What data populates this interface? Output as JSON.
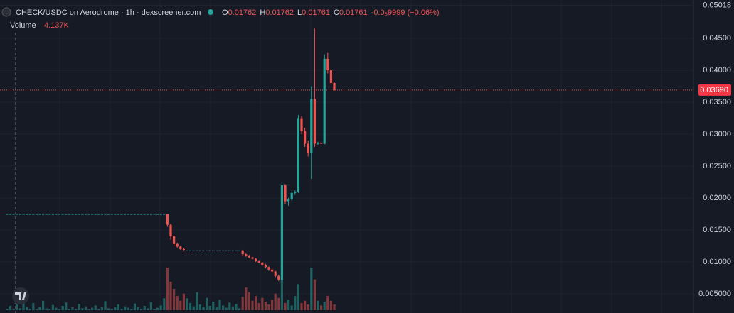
{
  "chart_data": {
    "type": "candlestick",
    "title": "CHECK/USDC on Aerodrome · 1h · dexscreener.com",
    "ohlc": {
      "o_label": "O",
      "o": 0.01762,
      "h_label": "H",
      "h": 0.01762,
      "l_label": "L",
      "l": 0.01761,
      "c_label": "C",
      "c": 0.01761,
      "change": "-0.0₅9999 (−0.06%)"
    },
    "volume_label": "Volume",
    "volume_value": "4.137K",
    "last_price": {
      "value": 0.0369,
      "label": "0.03690"
    },
    "ylim": [
      0.002,
      0.051
    ],
    "yticks": [
      {
        "value": 0.005,
        "label": "0.005000"
      },
      {
        "value": 0.01,
        "label": "0.01000"
      },
      {
        "value": 0.015,
        "label": "0.01500"
      },
      {
        "value": 0.02,
        "label": "0.02000"
      },
      {
        "value": 0.025,
        "label": "0.02500"
      },
      {
        "value": 0.03,
        "label": "0.03000"
      },
      {
        "value": 0.035,
        "label": "0.03500"
      },
      {
        "value": 0.04,
        "label": "0.04000"
      },
      {
        "value": 0.045,
        "label": "0.04500"
      },
      0.05018
    ],
    "grid": true,
    "up_color": "#26a69a",
    "down_color": "#ef5350",
    "open": [
      0.0175,
      0.0175,
      0.0175,
      0.0175,
      0.0175,
      0.0175,
      0.0175,
      0.0175,
      0.0175,
      0.0175,
      0.0175,
      0.0175,
      0.0175,
      0.0175,
      0.0175,
      0.0175,
      0.0175,
      0.0175,
      0.0175,
      0.0175,
      0.0175,
      0.0175,
      0.0175,
      0.0175,
      0.0175,
      0.0175,
      0.0175,
      0.0175,
      0.0175,
      0.0175,
      0.0175,
      0.0175,
      0.0175,
      0.0175,
      0.0175,
      0.0175,
      0.0175,
      0.0175,
      0.0175,
      0.0175,
      0.0175,
      0.0175,
      0.0175,
      0.0175,
      0.0175,
      0.0175,
      0.0175,
      0.0175,
      0.0175,
      0.0175,
      0.0158,
      0.014,
      0.0128,
      0.0124,
      0.012,
      0.0118,
      0.0118,
      0.0118,
      0.0118,
      0.0118,
      0.0118,
      0.0118,
      0.0118,
      0.0118,
      0.0118,
      0.0118,
      0.0118,
      0.0118,
      0.0118,
      0.0118,
      0.0118,
      0.0118,
      0.0118,
      0.0112,
      0.011,
      0.0107,
      0.0105,
      0.0101,
      0.0099,
      0.0095,
      0.0092,
      0.0088,
      0.0085,
      0.0078,
      0.0072,
      0.022,
      0.0195,
      0.0198,
      0.0208,
      0.021,
      0.0325,
      0.0305,
      0.0285,
      0.027,
      0.0355,
      0.0285,
      0.0286,
      0.0285,
      0.0418,
      0.04,
      0.038
    ],
    "high": [
      0.0175,
      0.0175,
      0.0175,
      0.0175,
      0.0175,
      0.0175,
      0.0175,
      0.0175,
      0.0175,
      0.0175,
      0.0175,
      0.0175,
      0.0175,
      0.0175,
      0.0175,
      0.0175,
      0.0175,
      0.0175,
      0.0175,
      0.0175,
      0.0175,
      0.0175,
      0.0175,
      0.0175,
      0.0175,
      0.0175,
      0.0175,
      0.0175,
      0.0175,
      0.0175,
      0.0175,
      0.0175,
      0.0175,
      0.0175,
      0.0175,
      0.0175,
      0.0175,
      0.0175,
      0.0175,
      0.0175,
      0.0175,
      0.0175,
      0.0175,
      0.0175,
      0.0175,
      0.0175,
      0.0175,
      0.0175,
      0.0175,
      0.0175,
      0.016,
      0.0142,
      0.013,
      0.0125,
      0.0122,
      0.0118,
      0.0118,
      0.0118,
      0.0118,
      0.0118,
      0.0118,
      0.0118,
      0.0118,
      0.0118,
      0.0118,
      0.0118,
      0.0118,
      0.0118,
      0.0118,
      0.0118,
      0.0118,
      0.0118,
      0.0119,
      0.0113,
      0.0111,
      0.0108,
      0.0106,
      0.0102,
      0.01,
      0.0097,
      0.0093,
      0.009,
      0.0086,
      0.008,
      0.0225,
      0.0222,
      0.02,
      0.021,
      0.0212,
      0.033,
      0.0328,
      0.031,
      0.029,
      0.0375,
      0.0465,
      0.0288,
      0.0288,
      0.0425,
      0.0428,
      0.0402,
      0.0381
    ],
    "low": [
      0.0175,
      0.0175,
      0.0175,
      0.0175,
      0.0175,
      0.0175,
      0.0175,
      0.0175,
      0.0175,
      0.0175,
      0.0175,
      0.0175,
      0.0175,
      0.0175,
      0.0175,
      0.0175,
      0.0175,
      0.0175,
      0.0175,
      0.0175,
      0.0175,
      0.0175,
      0.0175,
      0.0175,
      0.0175,
      0.0175,
      0.0175,
      0.0175,
      0.0175,
      0.0175,
      0.0175,
      0.0175,
      0.0175,
      0.0175,
      0.0175,
      0.0175,
      0.0175,
      0.0175,
      0.0175,
      0.0175,
      0.0175,
      0.0175,
      0.0175,
      0.0175,
      0.0175,
      0.0175,
      0.0175,
      0.0175,
      0.0175,
      0.0155,
      0.0135,
      0.0125,
      0.0122,
      0.0119,
      0.0118,
      0.0118,
      0.0118,
      0.0118,
      0.0118,
      0.0118,
      0.0118,
      0.0118,
      0.0118,
      0.0118,
      0.0118,
      0.0118,
      0.0118,
      0.0118,
      0.0118,
      0.0118,
      0.0118,
      0.0118,
      0.011,
      0.0108,
      0.0106,
      0.0104,
      0.01,
      0.0098,
      0.0094,
      0.009,
      0.0086,
      0.0084,
      0.0076,
      0.007,
      0.0068,
      0.019,
      0.0188,
      0.0196,
      0.0205,
      0.0208,
      0.03,
      0.028,
      0.0265,
      0.023,
      0.028,
      0.0283,
      0.0284,
      0.0284,
      0.0395,
      0.0378,
      0.0368
    ],
    "close": [
      0.0175,
      0.0175,
      0.0175,
      0.0175,
      0.0175,
      0.0175,
      0.0175,
      0.0175,
      0.0175,
      0.0175,
      0.0175,
      0.0175,
      0.0175,
      0.0175,
      0.0175,
      0.0175,
      0.0175,
      0.0175,
      0.0175,
      0.0175,
      0.0175,
      0.0175,
      0.0175,
      0.0175,
      0.0175,
      0.0175,
      0.0175,
      0.0175,
      0.0175,
      0.0175,
      0.0175,
      0.0175,
      0.0175,
      0.0175,
      0.0175,
      0.0175,
      0.0175,
      0.0175,
      0.0175,
      0.0175,
      0.0175,
      0.0175,
      0.0175,
      0.0175,
      0.0175,
      0.0175,
      0.0175,
      0.0175,
      0.0175,
      0.0158,
      0.014,
      0.0128,
      0.0124,
      0.012,
      0.0119,
      0.0118,
      0.0118,
      0.0118,
      0.0118,
      0.0118,
      0.0118,
      0.0118,
      0.0118,
      0.0118,
      0.0118,
      0.0118,
      0.0118,
      0.0118,
      0.0118,
      0.0118,
      0.0118,
      0.0118,
      0.0112,
      0.011,
      0.0107,
      0.0105,
      0.0101,
      0.0099,
      0.0095,
      0.0092,
      0.0088,
      0.0085,
      0.0078,
      0.0072,
      0.022,
      0.0195,
      0.0198,
      0.0208,
      0.021,
      0.0325,
      0.0305,
      0.0285,
      0.027,
      0.0355,
      0.0285,
      0.0286,
      0.0285,
      0.0418,
      0.04,
      0.038,
      0.0369
    ],
    "volume": [
      300,
      900,
      200,
      1200,
      400,
      1800,
      600,
      300,
      1500,
      200,
      700,
      2000,
      400,
      300,
      1100,
      500,
      200,
      900,
      1600,
      300,
      600,
      250,
      1300,
      400,
      800,
      200,
      500,
      1000,
      300,
      700,
      1900,
      400,
      250,
      600,
      1200,
      300,
      800,
      500,
      200,
      1400,
      600,
      300,
      900,
      400,
      1700,
      300,
      500,
      1000,
      2500,
      9000,
      6000,
      4500,
      3000,
      2000,
      3500,
      2500,
      1500,
      800,
      3800,
      1200,
      600,
      2600,
      900,
      1800,
      700,
      2200,
      1000,
      500,
      1600,
      800,
      1300,
      400,
      2800,
      4800,
      3800,
      2000,
      3000,
      1500,
      2600,
      1800,
      1200,
      2200,
      3500,
      2600,
      7000,
      1500,
      2200,
      1000,
      3000,
      5500,
      1500,
      2000,
      1200,
      9000,
      6500,
      2000,
      1000,
      1800,
      3000,
      2000,
      1200
    ],
    "vlim": [
      0,
      12000
    ]
  }
}
